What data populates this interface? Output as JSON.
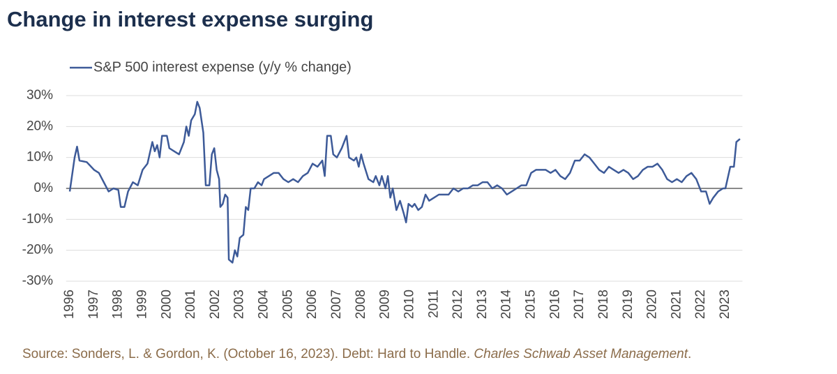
{
  "chart_data": {
    "type": "line",
    "title": "Change in interest expense surging",
    "source_parts": [
      "Source: Sonders, L. & Gordon, K. (October 16, 2023). Debt: Hard to Handle. ",
      "Charles Schwab Asset Management",
      "."
    ],
    "xlim": [
      1995.85,
      2023.7
    ],
    "xticks": [
      1996,
      1997,
      1998,
      1999,
      2000,
      2001,
      2002,
      2003,
      2004,
      2005,
      2006,
      2007,
      2008,
      2009,
      2010,
      2011,
      2012,
      2013,
      2014,
      2015,
      2016,
      2017,
      2018,
      2019,
      2020,
      2021,
      2022,
      2023
    ],
    "ylim": [
      -30,
      30
    ],
    "yticks": [
      {
        "value": 30,
        "label": "30%"
      },
      {
        "value": 20,
        "label": "20%"
      },
      {
        "value": 10,
        "label": "10%"
      },
      {
        "value": 0,
        "label": "0%"
      },
      {
        "value": -10,
        "label": "-10%"
      },
      {
        "value": -20,
        "label": "-20%"
      },
      {
        "value": -30,
        "label": "-30%"
      }
    ],
    "grid": true,
    "x": [
      1996.0,
      1996.2,
      1996.3,
      1996.4,
      1996.7,
      1997.0,
      1997.2,
      1997.4,
      1997.6,
      1997.8,
      1998.0,
      1998.1,
      1998.25,
      1998.4,
      1998.6,
      1998.8,
      1999.0,
      1999.2,
      1999.4,
      1999.5,
      1999.6,
      1999.7,
      1999.8,
      2000.0,
      2000.1,
      2000.3,
      2000.5,
      2000.7,
      2000.8,
      2000.9,
      2001.0,
      2001.15,
      2001.25,
      2001.35,
      2001.5,
      2001.6,
      2001.75,
      2001.85,
      2001.95,
      2002.05,
      2002.15,
      2002.2,
      2002.3,
      2002.4,
      2002.5,
      2002.55,
      2002.7,
      2002.8,
      2002.9,
      2003.0,
      2003.15,
      2003.25,
      2003.35,
      2003.45,
      2003.6,
      2003.75,
      2003.9,
      2004.0,
      2004.2,
      2004.4,
      2004.6,
      2004.8,
      2005.0,
      2005.2,
      2005.4,
      2005.6,
      2005.8,
      2006.0,
      2006.2,
      2006.4,
      2006.5,
      2006.6,
      2006.75,
      2006.85,
      2007.0,
      2007.2,
      2007.4,
      2007.5,
      2007.7,
      2007.8,
      2007.9,
      2008.0,
      2008.1,
      2008.3,
      2008.5,
      2008.6,
      2008.75,
      2008.85,
      2009.0,
      2009.1,
      2009.2,
      2009.3,
      2009.45,
      2009.6,
      2009.75,
      2009.85,
      2009.95,
      2010.1,
      2010.2,
      2010.35,
      2010.5,
      2010.65,
      2010.8,
      2011.0,
      2011.2,
      2011.4,
      2011.6,
      2011.8,
      2012.0,
      2012.2,
      2012.4,
      2012.6,
      2012.8,
      2013.0,
      2013.2,
      2013.4,
      2013.6,
      2013.8,
      2014.0,
      2014.2,
      2014.4,
      2014.6,
      2014.8,
      2015.0,
      2015.2,
      2015.4,
      2015.6,
      2015.8,
      2016.0,
      2016.2,
      2016.4,
      2016.6,
      2016.8,
      2017.0,
      2017.2,
      2017.4,
      2017.6,
      2017.8,
      2018.0,
      2018.2,
      2018.4,
      2018.6,
      2018.8,
      2019.0,
      2019.2,
      2019.4,
      2019.6,
      2019.8,
      2020.0,
      2020.2,
      2020.4,
      2020.6,
      2020.8,
      2021.0,
      2021.2,
      2021.4,
      2021.6,
      2021.8,
      2022.0,
      2022.2,
      2022.35,
      2022.5,
      2022.7,
      2022.9,
      2023.0,
      2023.2,
      2023.35,
      2023.45,
      2023.6
    ],
    "series": [
      {
        "name": "S&P 500 interest expense (y/y % change)",
        "color": "#3d5a98",
        "values": [
          -1,
          10,
          13.5,
          9,
          8.5,
          6,
          5,
          2,
          -1,
          0,
          -0.5,
          -6,
          -6,
          -1,
          2,
          1,
          6,
          8,
          15,
          12,
          14,
          10,
          17,
          17,
          13,
          12,
          11,
          15,
          20,
          17,
          22,
          24,
          28,
          26,
          18,
          1,
          1,
          11,
          13,
          6,
          3,
          -6,
          -5,
          -2,
          -3,
          -23,
          -24,
          -20,
          -22,
          -16,
          -15,
          -6,
          -7,
          0,
          0,
          2,
          1,
          3,
          4,
          5,
          5,
          3,
          2,
          3,
          2,
          4,
          5,
          8,
          7,
          9,
          4,
          17,
          17,
          11,
          10,
          13,
          17,
          10,
          9,
          10,
          7,
          11,
          8,
          3,
          2,
          4,
          1,
          4,
          0,
          4,
          -3,
          0,
          -7,
          -4,
          -8,
          -11,
          -5,
          -6,
          -5,
          -7,
          -6,
          -2,
          -4,
          -3,
          -2,
          -2,
          -2,
          0,
          -1,
          0,
          0,
          1,
          1,
          2,
          2,
          0,
          1,
          0,
          -2,
          -1,
          0,
          1,
          1,
          5,
          6,
          6,
          6,
          5,
          6,
          4,
          3,
          5,
          9,
          9,
          11,
          10,
          8,
          6,
          5,
          7,
          6,
          5,
          6,
          5,
          3,
          4,
          6,
          7,
          7,
          8,
          6,
          3,
          2,
          3,
          2,
          4,
          5,
          3,
          -1,
          -1,
          -5,
          -3,
          -1,
          0,
          0,
          7,
          7,
          15,
          16
        ]
      }
    ]
  }
}
